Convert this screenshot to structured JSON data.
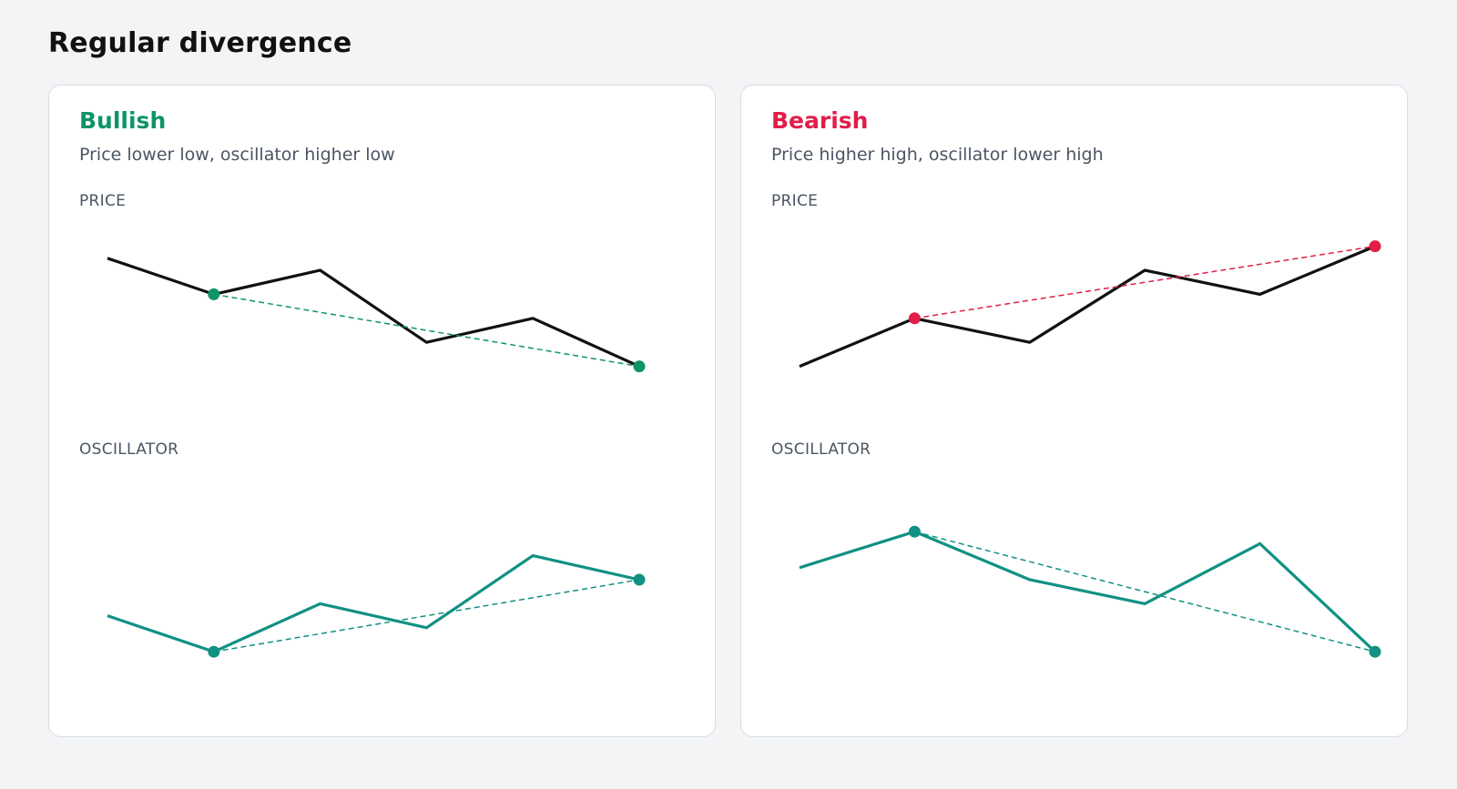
{
  "page": {
    "title": "Regular divergence"
  },
  "panels": [
    {
      "key": "bullish",
      "title": "Bullish",
      "description": "Price lower low, oscillator higher low",
      "price_label": "PRICE",
      "osc_label": "OSCILLATOR",
      "accent_color": "#0e9467"
    },
    {
      "key": "bearish",
      "title": "Bearish",
      "description": "Price higher high, oscillator lower high",
      "price_label": "PRICE",
      "osc_label": "OSCILLATOR",
      "accent_color": "#e11d48"
    }
  ],
  "colors": {
    "price_line": "#111111",
    "oscillator_line": "#109183",
    "oscillator_divergence": "#109183"
  },
  "chart_data": [
    {
      "type": "line",
      "title": "",
      "xlabel": "",
      "ylabel": "PRICE",
      "x": [
        0,
        1,
        2,
        3,
        4,
        5
      ],
      "values": [
        8.0,
        6.5,
        7.5,
        4.5,
        5.5,
        3.5
      ],
      "ylim": [
        0,
        10
      ],
      "divergence": {
        "from": 1,
        "to": 5
      }
    },
    {
      "type": "line",
      "title": "",
      "xlabel": "",
      "ylabel": "OSCILLATOR",
      "x": [
        0,
        1,
        2,
        3,
        4,
        5
      ],
      "values": [
        3.5,
        2.0,
        4.0,
        3.0,
        6.0,
        5.0
      ],
      "ylim": [
        0,
        10
      ],
      "divergence": {
        "from": 1,
        "to": 5
      }
    },
    {
      "type": "line",
      "title": "",
      "xlabel": "",
      "ylabel": "PRICE",
      "x": [
        0,
        1,
        2,
        3,
        4,
        5
      ],
      "values": [
        3.5,
        5.5,
        4.5,
        7.5,
        6.5,
        8.5
      ],
      "ylim": [
        0,
        10
      ],
      "divergence": {
        "from": 1,
        "to": 5
      }
    },
    {
      "type": "line",
      "title": "",
      "xlabel": "",
      "ylabel": "OSCILLATOR",
      "x": [
        0,
        1,
        2,
        3,
        4,
        5
      ],
      "values": [
        5.5,
        7.0,
        5.0,
        4.0,
        6.5,
        2.0
      ],
      "ylim": [
        0,
        10
      ],
      "divergence": {
        "from": 1,
        "to": 5
      }
    }
  ]
}
